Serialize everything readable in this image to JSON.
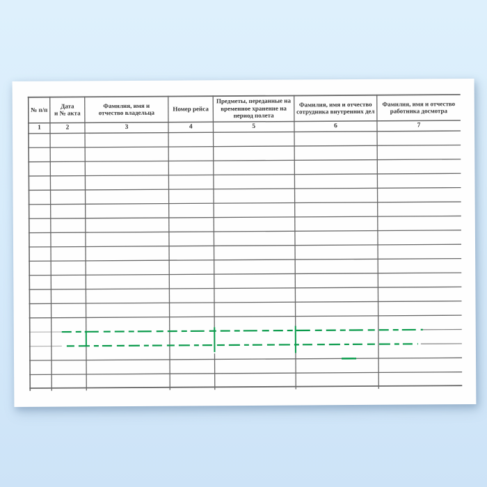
{
  "colors": {
    "grid": "#676767",
    "grid_light": "#b3b3b3",
    "grid_faded": "#828282",
    "text": "#333333",
    "watermark_green": "#0a9a4b",
    "sheet": "#fefefe",
    "background_top": "#def0fc",
    "background_bottom": "#cde3f7"
  },
  "table": {
    "columns": [
      {
        "header": "№ п/п",
        "num": "1"
      },
      {
        "header": "Дата\nи № акта",
        "num": "2"
      },
      {
        "header": "Фамилия, имя и\nотчество владельца",
        "num": "3"
      },
      {
        "header": "Номер рейса",
        "num": "4"
      },
      {
        "header": "Предметы, переданные на\nвременное хранение на\nпериод полета",
        "num": "5"
      },
      {
        "header": "Фамилия, имя и отчество\nсотрудника внутренних дел",
        "num": "6"
      },
      {
        "header": "Фамилия, имя и отчество\nработника досмотра",
        "num": "7"
      }
    ],
    "empty_body_rows": 18
  }
}
